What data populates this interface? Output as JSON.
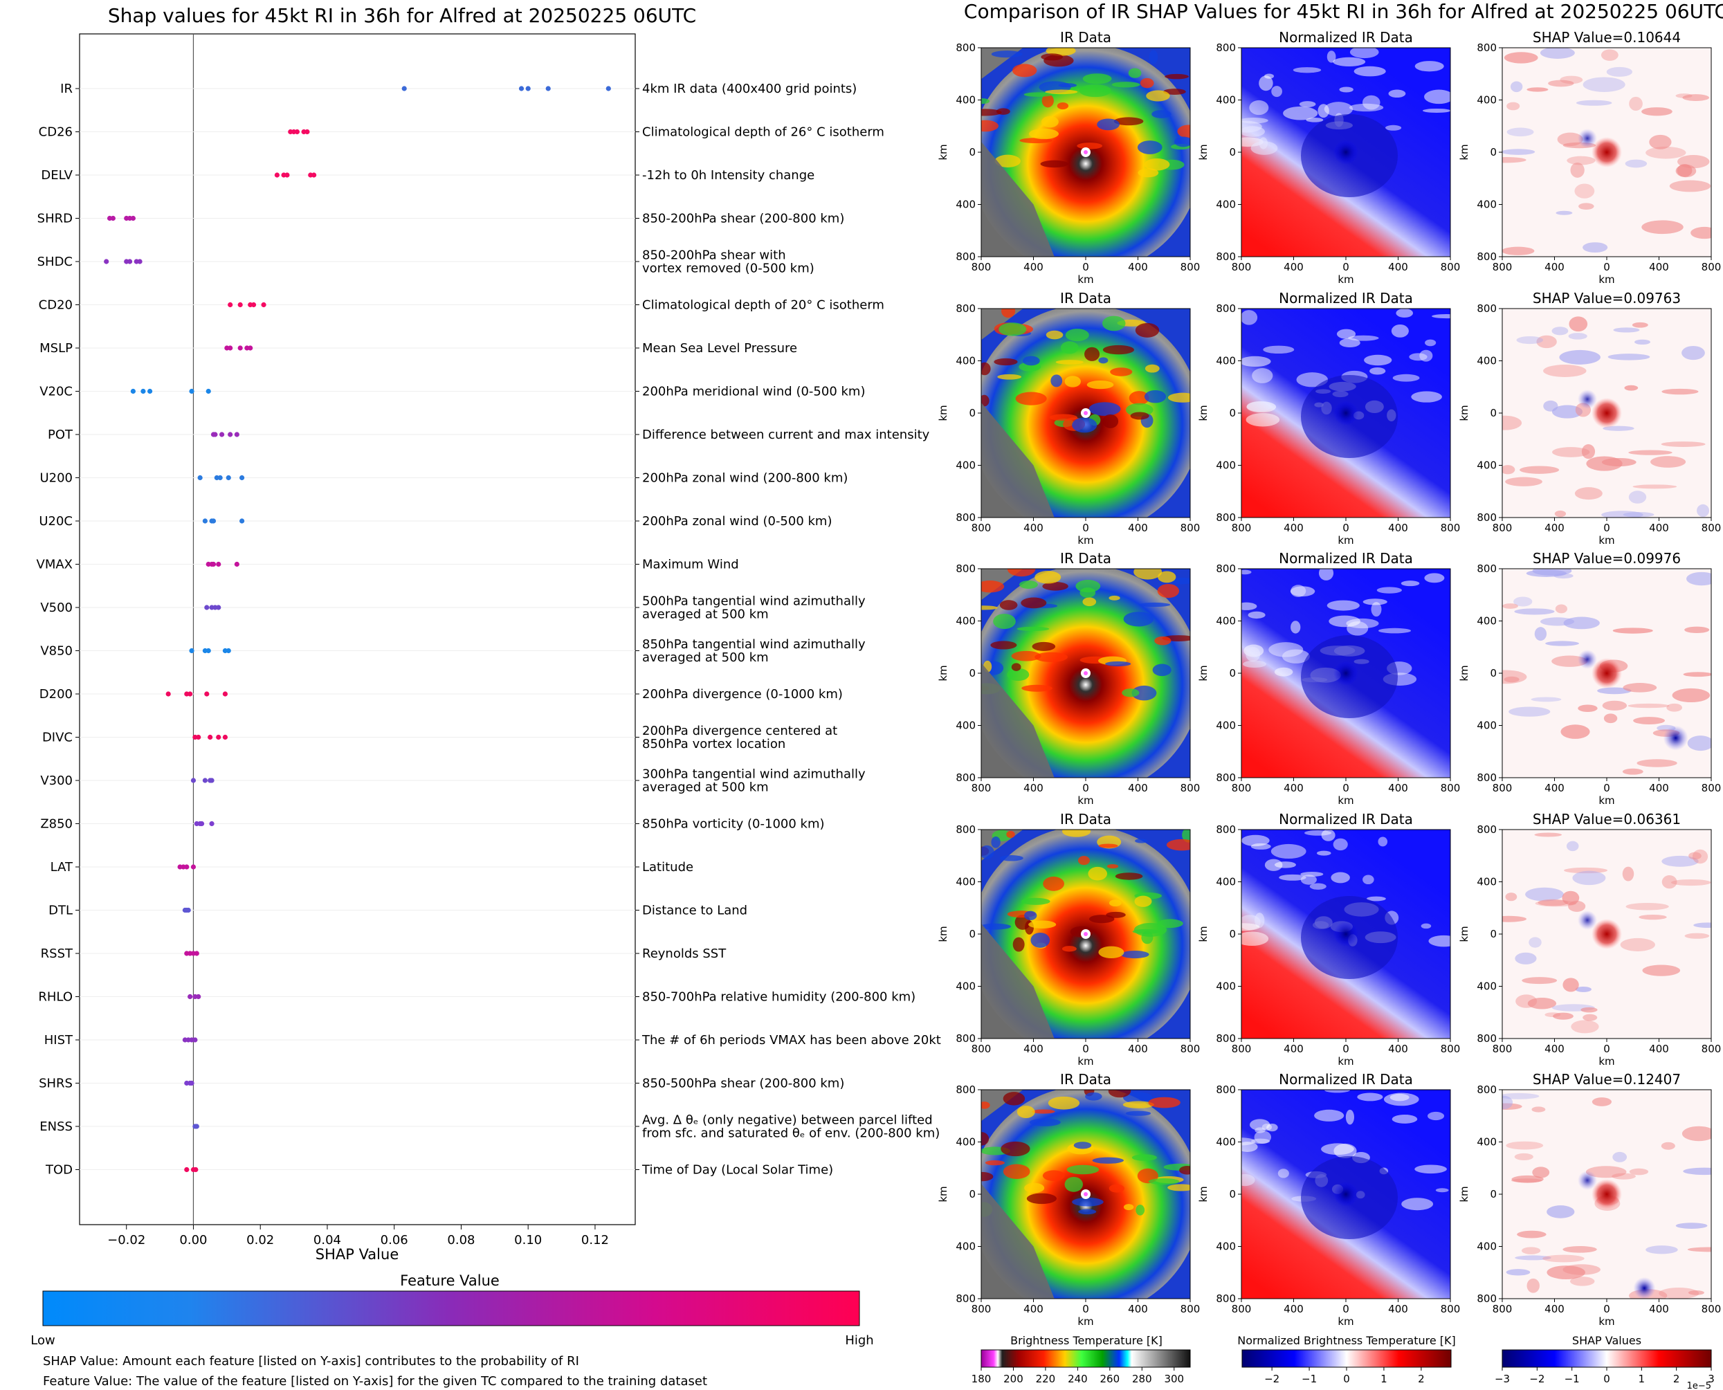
{
  "left_chart": {
    "title": "Shap values for 45kt RI in 36h for Alfred at 20250225 06UTC",
    "xlabel": "SHAP Value",
    "x_ticks": [
      "−0.02",
      "0.00",
      "0.02",
      "0.04",
      "0.06",
      "0.08",
      "0.10",
      "0.12"
    ],
    "colorbar": {
      "title": "Feature Value",
      "low": "Low",
      "high": "High",
      "low_color": "#008afb",
      "mid_color": "#7d3fd0",
      "high_color": "#ff0052"
    },
    "footnotes": [
      "SHAP Value: Amount each feature [listed on Y-axis] contributes to the probability of RI",
      "Feature Value: The value of the feature [listed on Y-axis] for the given TC compared to the training dataset"
    ]
  },
  "chart_data": {
    "type": "scatter",
    "title": "Shap values for 45kt RI in 36h for Alfred at 20250225 06UTC",
    "xlabel": "SHAP Value",
    "xlim": [
      -0.034,
      0.132
    ],
    "features": [
      {
        "name": "IR",
        "desc": [
          "4km IR data (400x400 grid points)"
        ],
        "color": "#3b6ad8",
        "values": [
          0.063,
          0.098,
          0.1,
          0.106,
          0.124
        ]
      },
      {
        "name": "CD26",
        "desc": [
          "Climatological depth of 26° C isotherm"
        ],
        "color": "#f50a62",
        "values": [
          0.029,
          0.03,
          0.031,
          0.033,
          0.034
        ]
      },
      {
        "name": "DELV",
        "desc": [
          "-12h to 0h Intensity change"
        ],
        "color": "#f50a62",
        "values": [
          0.025,
          0.027,
          0.028,
          0.035,
          0.036
        ]
      },
      {
        "name": "SHRD",
        "desc": [
          "850-200hPa shear (200-800 km)"
        ],
        "color": "#b81ba6",
        "values": [
          -0.025,
          -0.024,
          -0.02,
          -0.019,
          -0.018
        ]
      },
      {
        "name": "SHDC",
        "desc": [
          "850-200hPa shear with",
          "vortex removed (0-500 km)"
        ],
        "color": "#8a33c2",
        "values": [
          -0.026,
          -0.02,
          -0.019,
          -0.017,
          -0.016
        ]
      },
      {
        "name": "CD20",
        "desc": [
          "Climatological depth of 20° C isotherm"
        ],
        "color": "#f50a62",
        "values": [
          0.011,
          0.014,
          0.017,
          0.018,
          0.021
        ]
      },
      {
        "name": "MSLP",
        "desc": [
          "Mean Sea Level Pressure"
        ],
        "color": "#c4139c",
        "values": [
          0.01,
          0.011,
          0.014,
          0.016,
          0.017
        ]
      },
      {
        "name": "V20C",
        "desc": [
          "200hPa meridional wind (0-500 km)"
        ],
        "color": "#1b86e8",
        "values": [
          -0.018,
          -0.015,
          -0.013,
          -0.0005,
          0.0045
        ]
      },
      {
        "name": "POT",
        "desc": [
          "Difference between current and max intensity"
        ],
        "color": "#9a2cba",
        "values": [
          0.006,
          0.0065,
          0.0085,
          0.011,
          0.013
        ]
      },
      {
        "name": "U200",
        "desc": [
          "200hPa zonal wind (200-800 km)"
        ],
        "color": "#2b7bdf",
        "values": [
          0.002,
          0.007,
          0.008,
          0.0105,
          0.0145
        ]
      },
      {
        "name": "U20C",
        "desc": [
          "200hPa zonal wind (0-500 km)"
        ],
        "color": "#2b7bdf",
        "values": [
          0.0035,
          0.0055,
          0.006,
          0.0145
        ]
      },
      {
        "name": "VMAX",
        "desc": [
          "Maximum Wind"
        ],
        "color": "#c4139c",
        "values": [
          0.0045,
          0.0055,
          0.006,
          0.0075,
          0.013
        ]
      },
      {
        "name": "V500",
        "desc": [
          "500hPa tangential wind azimuthally",
          "averaged at 500 km"
        ],
        "color": "#6d49cd",
        "values": [
          0.004,
          0.0055,
          0.0065,
          0.0075
        ]
      },
      {
        "name": "V850",
        "desc": [
          "850hPa tangential wind azimuthally",
          "averaged at 500 km"
        ],
        "color": "#1b86e8",
        "values": [
          -0.0005,
          0.0035,
          0.0045,
          0.0095,
          0.0105
        ]
      },
      {
        "name": "D200",
        "desc": [
          "200hPa divergence (0-1000 km)"
        ],
        "color": "#f0095f",
        "values": [
          -0.0075,
          -0.002,
          -0.001,
          0.004,
          0.0095
        ]
      },
      {
        "name": "DIVC",
        "desc": [
          "200hPa divergence centered at",
          "850hPa vortex location"
        ],
        "color": "#f0095f",
        "values": [
          0.0005,
          0.0015,
          0.005,
          0.0075,
          0.0095
        ]
      },
      {
        "name": "V300",
        "desc": [
          "300hPa tangential wind azimuthally",
          "averaged at 500 km"
        ],
        "color": "#6d49cd",
        "values": [
          0.0,
          0.0035,
          0.005,
          0.0055
        ]
      },
      {
        "name": "Z850",
        "desc": [
          "850hPa vorticity (0-1000 km)"
        ],
        "color": "#7d3fd0",
        "values": [
          0.001,
          0.002,
          0.0025,
          0.0055
        ]
      },
      {
        "name": "LAT",
        "desc": [
          "Latitude"
        ],
        "color": "#c4139c",
        "values": [
          -0.004,
          -0.003,
          -0.002,
          0.0
        ]
      },
      {
        "name": "DTL",
        "desc": [
          "Distance to Land"
        ],
        "color": "#5e57d3",
        "values": [
          -0.0025,
          -0.002,
          -0.0015
        ]
      },
      {
        "name": "RSST",
        "desc": [
          "Reynolds SST"
        ],
        "color": "#c4139c",
        "values": [
          -0.002,
          -0.001,
          0.0,
          0.001
        ]
      },
      {
        "name": "RHLO",
        "desc": [
          "850-700hPa relative humidity (200-800 km)"
        ],
        "color": "#9a2cba",
        "values": [
          -0.001,
          0.0005,
          0.0015
        ]
      },
      {
        "name": "HIST",
        "desc": [
          "The # of 6h periods VMAX has been above 20kt"
        ],
        "color": "#8a33c2",
        "values": [
          -0.0025,
          -0.0015,
          -0.0005,
          0.0005
        ]
      },
      {
        "name": "SHRS",
        "desc": [
          "850-500hPa shear (200-800 km)"
        ],
        "color": "#7d3fd0",
        "values": [
          -0.002,
          -0.001,
          -0.0005
        ]
      },
      {
        "name": "ENSS",
        "desc": [
          "Avg. Δ θₑ (only negative) between parcel lifted",
          "from sfc. and saturated θₑ of env. (200-800 km)"
        ],
        "color": "#5e57d3",
        "values": [
          0.0005,
          0.001
        ]
      },
      {
        "name": "TOD",
        "desc": [
          "Time of Day (Local Solar Time)"
        ],
        "color": "#f0095f",
        "values": [
          -0.002,
          0.0,
          0.0007
        ]
      }
    ]
  },
  "right_panel": {
    "title": "Comparison of IR SHAP Values for 45kt RI in 36h for Alfred at 20250225 06UTC",
    "axis_label": "km",
    "x_ticks": [
      "800",
      "400",
      "0",
      "400",
      "800"
    ],
    "y_ticks": [
      "800",
      "400",
      "0",
      "400",
      "800"
    ],
    "column_titles": [
      "IR Data",
      "Normalized IR Data"
    ],
    "shap_titles": [
      "SHAP Value=0.10644",
      "SHAP Value=0.09763",
      "SHAP Value=0.09976",
      "SHAP Value=0.06361",
      "SHAP Value=0.12407"
    ],
    "colorbars": [
      {
        "title": "Brightness Temperature [K]",
        "ticks": [
          "180",
          "200",
          "220",
          "240",
          "260",
          "280",
          "300"
        ]
      },
      {
        "title": "Normalized Brightness Temperature [K]",
        "ticks": [
          "−2",
          "−1",
          "0",
          "1",
          "2"
        ]
      },
      {
        "title": "SHAP Values",
        "ticks": [
          "−3",
          "−2",
          "−1",
          "0",
          "1",
          "2",
          "3"
        ],
        "offset": "1e−5"
      }
    ]
  }
}
